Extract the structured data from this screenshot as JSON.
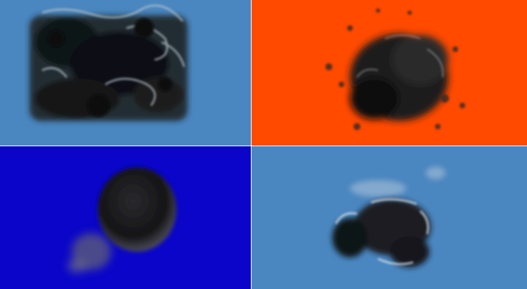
{
  "panels": [
    {
      "id": "top-left",
      "background": "#4a86bf",
      "subject": "volumetric-cloud"
    },
    {
      "id": "top-right",
      "background": "#ff4a00",
      "subject": "volumetric-cloud"
    },
    {
      "id": "bottom-left",
      "background": "#0a05c8",
      "subject": "volumetric-cloud"
    },
    {
      "id": "bottom-right",
      "background": "#4a86bf",
      "subject": "volumetric-cloud"
    }
  ]
}
